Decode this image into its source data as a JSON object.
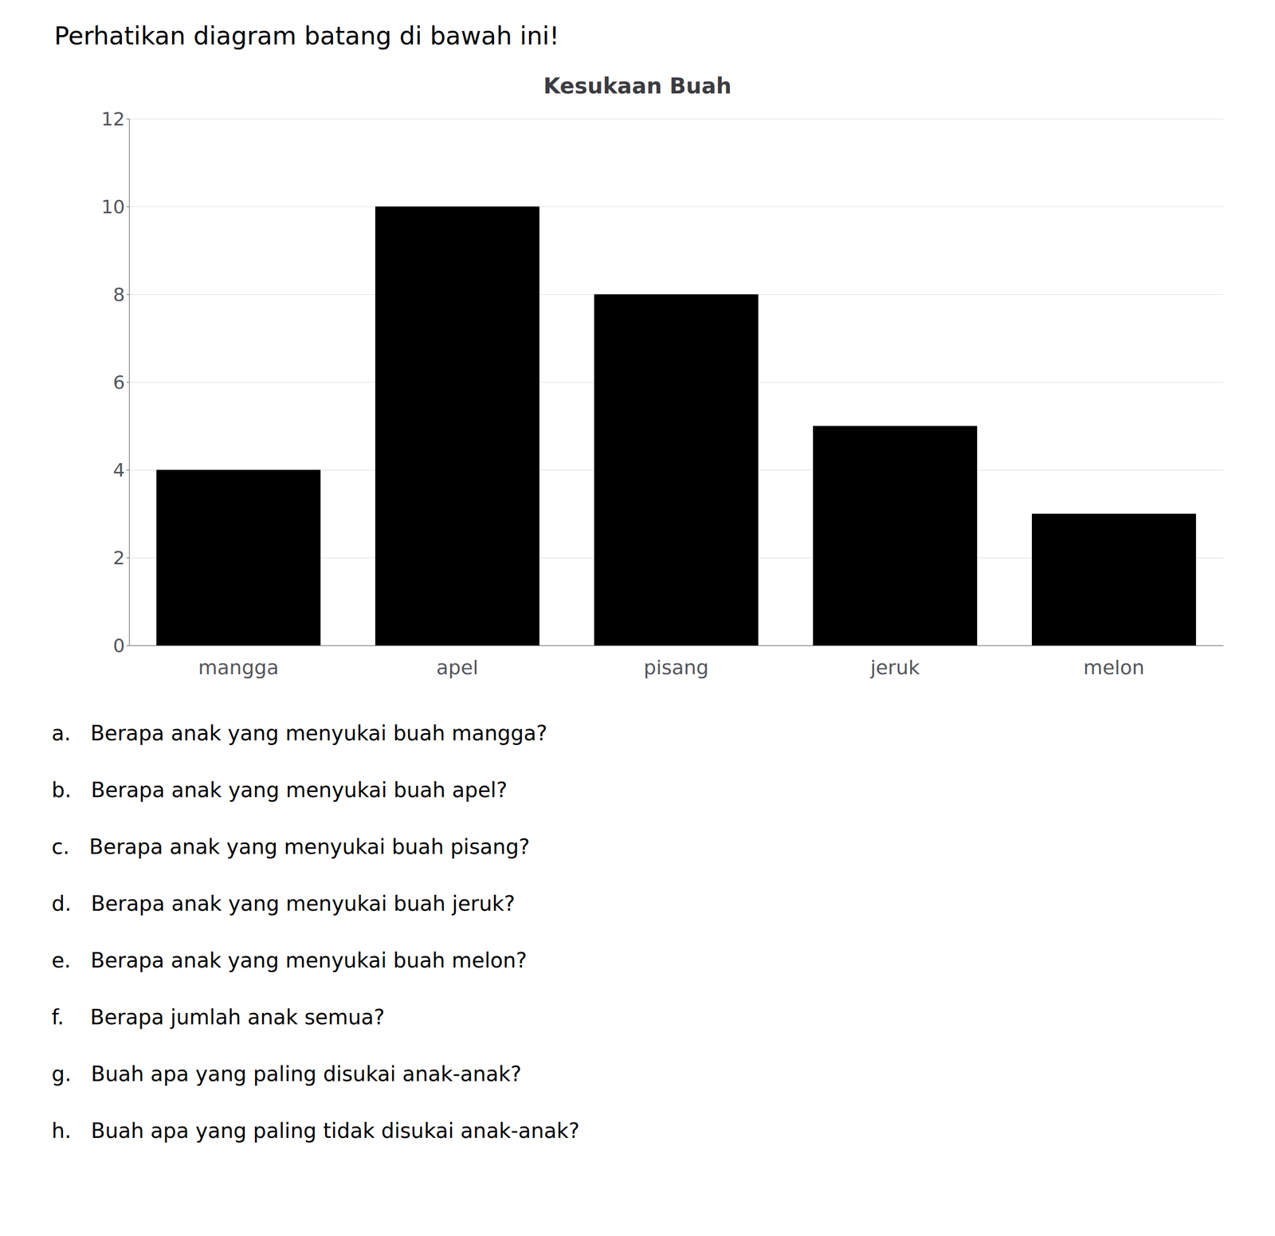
{
  "chart_data": {
    "type": "bar",
    "title": "Kesukaan Buah",
    "subtitle": "Perhatikan diagram batang di bawah ini!",
    "categories": [
      "mangga",
      "apel",
      "pisang",
      "jeruk",
      "melon"
    ],
    "values": [
      4,
      10,
      8,
      5,
      3
    ],
    "color": "#000000",
    "ylim": [
      0,
      12
    ],
    "yticks": [
      0,
      2,
      4,
      6,
      8,
      10,
      12
    ],
    "grid": true,
    "annotations": [
      "a.   Berapa anak yang menyukai buah mangga?",
      "b.   Berapa anak yang menyukai buah apel?",
      "c.   Berapa anak yang menyukai buah pisang?",
      "d.   Berapa anak yang menyukai buah jeruk?",
      "e.   Berapa anak yang menyukai buah melon?",
      "f.    Berapa jumlah anak semua?",
      "g.   Buah apa yang paling disukai anak-anak?",
      "h.   Buah apa yang paling tidak disukai anak-anak?"
    ]
  }
}
